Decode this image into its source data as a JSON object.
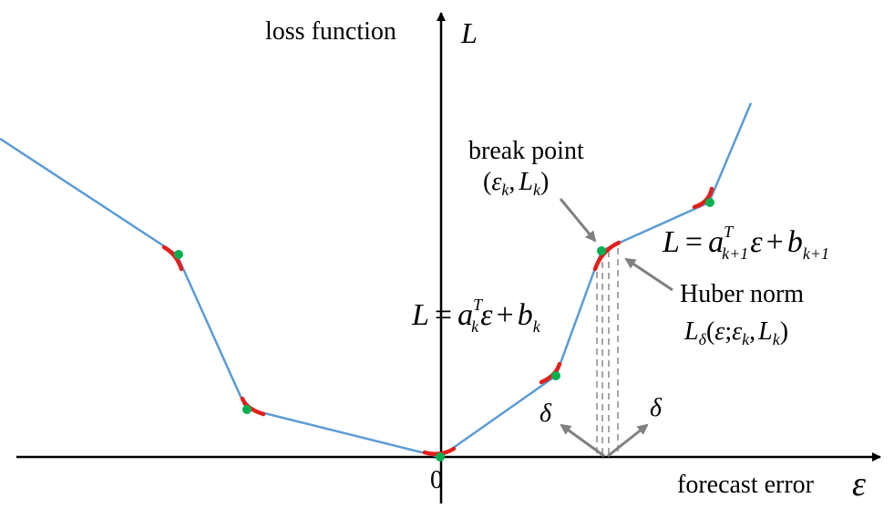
{
  "axes": {
    "y_axis_label": "loss function",
    "y_symbol": "L",
    "x_axis_label": "forecast error",
    "x_symbol": "ε",
    "origin_label": "0"
  },
  "annotations": {
    "break_point_title": "break point",
    "break_point_open": "(",
    "break_point_eps": "ε",
    "break_point_k1": "k",
    "break_point_comma": ",",
    "break_point_L": "L",
    "break_point_k2": "k",
    "break_point_close": ")",
    "huber_title": "Huber norm",
    "huber_L": "L",
    "huber_delta_sub": "δ",
    "huber_open": "(",
    "huber_eps": "ε",
    "huber_semi": ";",
    "huber_eps2": "ε",
    "huber_k1": "k",
    "huber_comma": ",",
    "huber_L2": "L",
    "huber_k2": "k",
    "huber_close": ")",
    "delta_left": "δ",
    "delta_right": "δ"
  },
  "equations": {
    "left": {
      "L": "L",
      "eq": "=",
      "a": "a",
      "sup": "T",
      "sub_a": "k",
      "eps": "ε",
      "plus": "+",
      "b": "b",
      "sub_b": "k"
    },
    "right": {
      "L": "L",
      "eq": "=",
      "a": "a",
      "sup": "T",
      "sub_a": "k+1",
      "eps": "ε",
      "plus": "+",
      "b": "b",
      "sub_b": "k+1"
    }
  },
  "colors": {
    "curve": "#5B9BD5",
    "huber_segment": "#E3201B",
    "break_point": "#00B050",
    "axis": "#000000",
    "pointer": "#808080",
    "dashed": "#A6A6A6"
  }
}
